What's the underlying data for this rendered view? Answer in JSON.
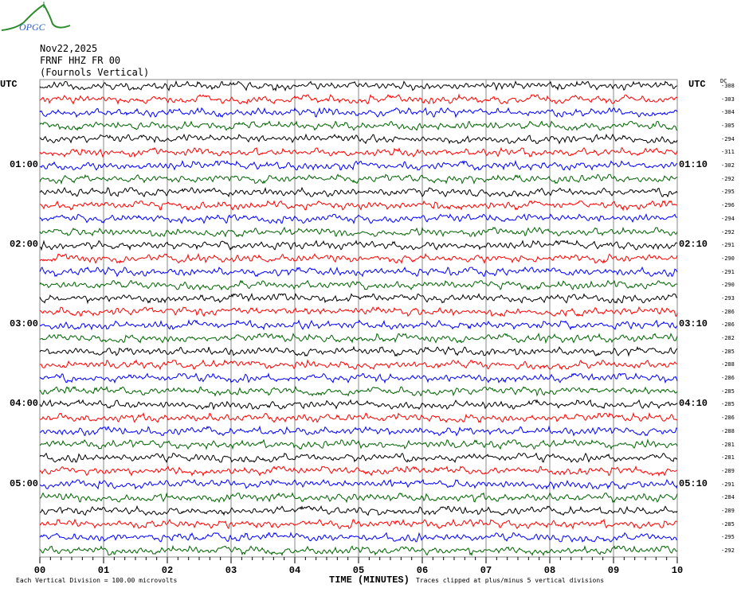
{
  "logo": {
    "text": "OPGC",
    "colors": {
      "curve": "#2e8b2e",
      "text": "#2a5bd7"
    }
  },
  "header": {
    "date": "Nov22,2025",
    "station": "FRNF HHZ FR 00",
    "description": "(Fournols Vertical)"
  },
  "chart_data": {
    "type": "line",
    "subtype": "helicorder",
    "left_axis_title": "UTC",
    "right_axis_title": "UTC",
    "dc_header": "DC",
    "left_labels": [
      {
        "row": 6,
        "text": "01:00"
      },
      {
        "row": 12,
        "text": "02:00"
      },
      {
        "row": 18,
        "text": "03:00"
      },
      {
        "row": 24,
        "text": "04:00"
      },
      {
        "row": 30,
        "text": "05:00"
      }
    ],
    "right_labels": [
      {
        "row": 6,
        "text": "01:10"
      },
      {
        "row": 12,
        "text": "02:10"
      },
      {
        "row": 18,
        "text": "03:10"
      },
      {
        "row": 24,
        "text": "04:10"
      },
      {
        "row": 30,
        "text": "05:10"
      }
    ],
    "dc_offsets": [
      "-308",
      "-303",
      "-304",
      "-305",
      "-294",
      "-311",
      "-302",
      "-292",
      "-295",
      "-296",
      "-294",
      "-292",
      "-291",
      "-290",
      "-291",
      "-290",
      "-293",
      "-286",
      "-286",
      "-282",
      "-285",
      "-288",
      "-286",
      "-285",
      "-285",
      "-286",
      "-288",
      "-281",
      "-281",
      "-289",
      "-291",
      "-284",
      "-289",
      "-285",
      "-295",
      "-292"
    ],
    "trace_colors": [
      "#000000",
      "#ff0000",
      "#0000ff",
      "#006400"
    ],
    "minutes_per_row": 10,
    "x_ticks": [
      "00",
      "01",
      "02",
      "03",
      "04",
      "05",
      "06",
      "07",
      "08",
      "09",
      "10"
    ],
    "xlim": [
      0,
      10
    ],
    "xlabel": "TIME (MINUTES)",
    "grid": true,
    "footer_left": "Each Vertical Division =  100.00 microvolts",
    "footer_right": "Traces clipped at plus/minus 5 vertical divisions"
  }
}
